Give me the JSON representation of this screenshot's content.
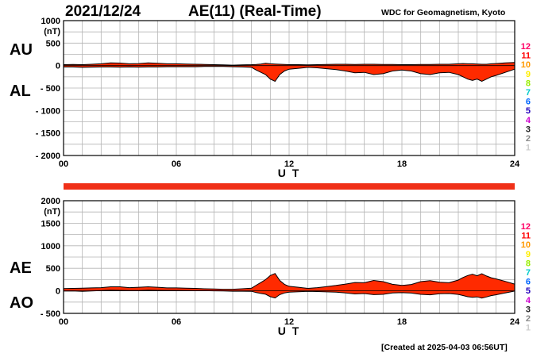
{
  "header": {
    "date": "2021/12/24",
    "title": "AE(11) (Real-Time)",
    "source": "WDC for Geomagnetism, Kyoto"
  },
  "footer": {
    "created": "[Created at 2025-04-03 06:56UT]"
  },
  "colors": {
    "fill": "#ff2a00",
    "bar": "#f03018",
    "grid": "#b4b4b4",
    "line": "#000000"
  },
  "legend": {
    "items": [
      {
        "label": "12",
        "color": "#ff0066"
      },
      {
        "label": "11",
        "color": "#ff0000"
      },
      {
        "label": "10",
        "color": "#ff9900"
      },
      {
        "label": "9",
        "color": "#ffee00"
      },
      {
        "label": "8",
        "color": "#99ee00"
      },
      {
        "label": "7",
        "color": "#00cccc"
      },
      {
        "label": "6",
        "color": "#0066ff"
      },
      {
        "label": "5",
        "color": "#2200bb"
      },
      {
        "label": "4",
        "color": "#cc00cc"
      },
      {
        "label": "3",
        "color": "#222222"
      },
      {
        "label": "2",
        "color": "#888888"
      },
      {
        "label": "1",
        "color": "#cccccc"
      }
    ]
  },
  "chart_data": [
    {
      "type": "area",
      "title": "AE(11) (Real-Time)",
      "xlabel": "U T",
      "ylabel": "(nT)",
      "xlim": [
        0,
        24
      ],
      "ylim": [
        -2000,
        1000
      ],
      "xticks": [
        0,
        6,
        12,
        18,
        24
      ],
      "xtick_labels": [
        "00",
        "06",
        "12",
        "18",
        "24"
      ],
      "yticks": [
        1000,
        500,
        0,
        -500,
        -1000,
        -1500,
        -2000
      ],
      "ytick_labels": [
        "1000",
        "500",
        "0",
        "- 500",
        "- 1000",
        "- 1500",
        "- 2000"
      ],
      "grid": true,
      "side_labels": [
        "AU",
        "AL"
      ],
      "x_hours": [
        0,
        0.5,
        1,
        1.5,
        2,
        2.5,
        3,
        3.5,
        4,
        4.5,
        5,
        5.5,
        6,
        6.5,
        7,
        7.5,
        8,
        8.5,
        9,
        9.5,
        10,
        10.25,
        10.5,
        10.75,
        11,
        11.25,
        11.5,
        11.75,
        12,
        12.5,
        13,
        13.5,
        14,
        14.5,
        15,
        15.5,
        16,
        16.5,
        17,
        17.5,
        18,
        18.5,
        19,
        19.5,
        20,
        20.5,
        21,
        21.25,
        21.5,
        21.75,
        22,
        22.25,
        22.5,
        22.75,
        23,
        23.5,
        24
      ],
      "series": [
        {
          "name": "AU",
          "values": [
            20,
            25,
            20,
            30,
            40,
            60,
            55,
            40,
            45,
            60,
            50,
            40,
            40,
            35,
            30,
            25,
            20,
            15,
            10,
            15,
            20,
            25,
            35,
            50,
            40,
            35,
            30,
            25,
            20,
            20,
            15,
            20,
            25,
            30,
            30,
            25,
            30,
            30,
            25,
            25,
            20,
            20,
            25,
            25,
            30,
            30,
            40,
            45,
            40,
            40,
            35,
            30,
            30,
            40,
            45,
            60,
            70
          ]
        },
        {
          "name": "AL",
          "values": [
            -30,
            -30,
            -40,
            -35,
            -30,
            -30,
            -35,
            -30,
            -35,
            -30,
            -30,
            -25,
            -25,
            -25,
            -25,
            -20,
            -20,
            -20,
            -25,
            -30,
            -40,
            -100,
            -150,
            -200,
            -300,
            -350,
            -200,
            -120,
            -80,
            -60,
            -40,
            -50,
            -70,
            -90,
            -120,
            -160,
            -150,
            -200,
            -180,
            -120,
            -100,
            -120,
            -180,
            -200,
            -160,
            -150,
            -200,
            -250,
            -300,
            -330,
            -300,
            -350,
            -300,
            -250,
            -220,
            -150,
            -80
          ]
        }
      ]
    },
    {
      "type": "area",
      "xlabel": "U T",
      "ylabel": "(nT)",
      "xlim": [
        0,
        24
      ],
      "ylim": [
        -500,
        2000
      ],
      "xticks": [
        0,
        6,
        12,
        18,
        24
      ],
      "xtick_labels": [
        "00",
        "06",
        "12",
        "18",
        "24"
      ],
      "yticks": [
        2000,
        1500,
        1000,
        500,
        0,
        -500
      ],
      "ytick_labels": [
        "2000",
        "1500",
        "1000",
        "500",
        "0",
        "- 500"
      ],
      "grid": true,
      "side_labels": [
        "AE",
        "AO"
      ],
      "x_hours": [
        0,
        0.5,
        1,
        1.5,
        2,
        2.5,
        3,
        3.5,
        4,
        4.5,
        5,
        5.5,
        6,
        6.5,
        7,
        7.5,
        8,
        8.5,
        9,
        9.5,
        10,
        10.25,
        10.5,
        10.75,
        11,
        11.25,
        11.5,
        11.75,
        12,
        12.5,
        13,
        13.5,
        14,
        14.5,
        15,
        15.5,
        16,
        16.5,
        17,
        17.5,
        18,
        18.5,
        19,
        19.5,
        20,
        20.5,
        21,
        21.25,
        21.5,
        21.75,
        22,
        22.25,
        22.5,
        22.75,
        23,
        23.5,
        24
      ],
      "series": [
        {
          "name": "AE",
          "values": [
            50,
            55,
            60,
            65,
            70,
            90,
            90,
            70,
            80,
            90,
            80,
            65,
            65,
            60,
            55,
            45,
            40,
            35,
            35,
            45,
            60,
            125,
            185,
            250,
            340,
            385,
            230,
            145,
            100,
            80,
            55,
            70,
            95,
            120,
            150,
            185,
            180,
            230,
            205,
            145,
            120,
            140,
            205,
            225,
            190,
            180,
            240,
            295,
            340,
            370,
            335,
            380,
            330,
            290,
            265,
            210,
            150
          ]
        },
        {
          "name": "AO",
          "values": [
            -5,
            -2,
            -10,
            -2,
            5,
            15,
            10,
            5,
            5,
            15,
            10,
            8,
            8,
            5,
            3,
            3,
            0,
            -3,
            -8,
            -8,
            -10,
            -38,
            -58,
            -75,
            -130,
            -158,
            -85,
            -48,
            -30,
            -20,
            -13,
            -15,
            -23,
            -30,
            -45,
            -68,
            -60,
            -85,
            -78,
            -48,
            -40,
            -50,
            -78,
            -88,
            -65,
            -60,
            -80,
            -103,
            -130,
            -145,
            -133,
            -160,
            -135,
            -105,
            -88,
            -45,
            -5
          ]
        }
      ]
    }
  ]
}
